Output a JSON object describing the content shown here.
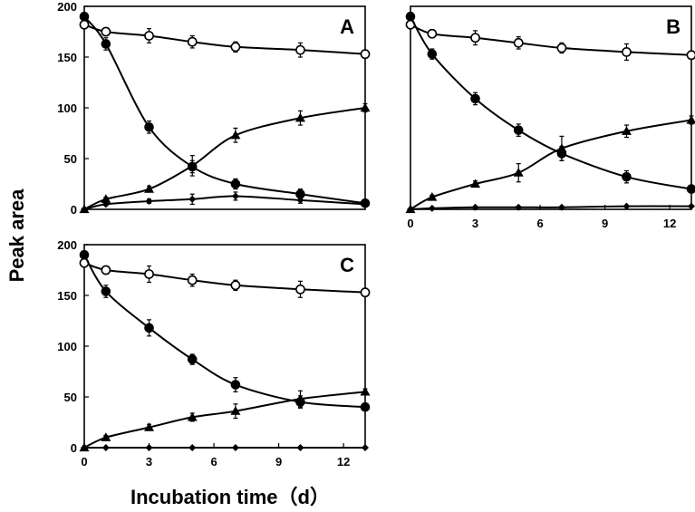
{
  "figure": {
    "ylabel": "Peak area",
    "xlabel": "Incubation time（d）"
  },
  "chart_data": [
    {
      "type": "line",
      "panel": "A",
      "xlim": [
        0,
        13
      ],
      "ylim": [
        0,
        200
      ],
      "yticks": [
        0,
        50,
        100,
        150,
        200
      ],
      "xticks": [],
      "series": [
        {
          "name": "open-circle",
          "marker": "open-circle",
          "x": [
            0,
            1,
            3,
            5,
            7,
            10,
            13
          ],
          "y": [
            182,
            175,
            171,
            165,
            160,
            157,
            153
          ],
          "err": [
            4,
            4,
            7,
            6,
            5,
            7,
            4
          ]
        },
        {
          "name": "filled-circle",
          "marker": "filled-circle",
          "x": [
            0,
            1,
            3,
            5,
            7,
            10,
            13
          ],
          "y": [
            190,
            163,
            81,
            42,
            25,
            15,
            6
          ],
          "err": [
            3,
            6,
            6,
            6,
            5,
            5,
            2
          ]
        },
        {
          "name": "triangle",
          "marker": "triangle",
          "x": [
            0,
            1,
            3,
            5,
            7,
            10,
            13
          ],
          "y": [
            0,
            10,
            20,
            43,
            73,
            90,
            100
          ],
          "err": [
            0,
            2,
            3,
            10,
            7,
            7,
            4
          ]
        },
        {
          "name": "diamond",
          "marker": "diamond",
          "x": [
            0,
            1,
            3,
            5,
            7,
            10,
            13
          ],
          "y": [
            0,
            5,
            8,
            10,
            13,
            9,
            5
          ],
          "err": [
            0,
            1,
            2,
            5,
            4,
            3,
            2
          ]
        }
      ]
    },
    {
      "type": "line",
      "panel": "B",
      "xlim": [
        0,
        13
      ],
      "ylim": [
        0,
        200
      ],
      "yticks": [],
      "xticks": [
        0,
        3,
        6,
        9,
        12
      ],
      "series": [
        {
          "name": "open-circle",
          "marker": "open-circle",
          "x": [
            0,
            1,
            3,
            5,
            7,
            10,
            13
          ],
          "y": [
            182,
            173,
            169,
            164,
            159,
            155,
            152
          ],
          "err": [
            4,
            4,
            7,
            6,
            5,
            8,
            4
          ]
        },
        {
          "name": "filled-circle",
          "marker": "filled-circle",
          "x": [
            0,
            1,
            3,
            5,
            7,
            10,
            13
          ],
          "y": [
            190,
            153,
            109,
            78,
            55,
            32,
            20
          ],
          "err": [
            3,
            5,
            6,
            6,
            7,
            6,
            3
          ]
        },
        {
          "name": "triangle",
          "marker": "triangle",
          "x": [
            0,
            1,
            3,
            5,
            7,
            10,
            13
          ],
          "y": [
            0,
            12,
            25,
            36,
            60,
            77,
            88
          ],
          "err": [
            0,
            2,
            3,
            9,
            12,
            6,
            4
          ]
        },
        {
          "name": "diamond",
          "marker": "diamond",
          "x": [
            0,
            1,
            3,
            5,
            7,
            10,
            13
          ],
          "y": [
            0,
            1,
            2,
            2,
            2,
            3,
            3
          ],
          "err": [
            0,
            0,
            0,
            0,
            0,
            0,
            0
          ]
        }
      ]
    },
    {
      "type": "line",
      "panel": "C",
      "xlim": [
        0,
        13
      ],
      "ylim": [
        0,
        200
      ],
      "yticks": [
        0,
        50,
        100,
        150,
        200
      ],
      "xticks": [
        0,
        3,
        6,
        9,
        12
      ],
      "series": [
        {
          "name": "open-circle",
          "marker": "open-circle",
          "x": [
            0,
            1,
            3,
            5,
            7,
            10,
            13
          ],
          "y": [
            182,
            175,
            171,
            165,
            160,
            156,
            153
          ],
          "err": [
            4,
            4,
            8,
            6,
            5,
            8,
            4
          ]
        },
        {
          "name": "filled-circle",
          "marker": "filled-circle",
          "x": [
            0,
            1,
            3,
            5,
            7,
            10,
            13
          ],
          "y": [
            190,
            154,
            118,
            87,
            62,
            45,
            40
          ],
          "err": [
            3,
            6,
            8,
            5,
            7,
            6,
            3
          ]
        },
        {
          "name": "triangle",
          "marker": "triangle",
          "x": [
            0,
            1,
            3,
            5,
            7,
            10,
            13
          ],
          "y": [
            0,
            10,
            20,
            30,
            36,
            48,
            55
          ],
          "err": [
            0,
            2,
            3,
            4,
            7,
            8,
            3
          ]
        },
        {
          "name": "diamond",
          "marker": "diamond",
          "x": [
            0,
            1,
            3,
            5,
            7,
            10,
            13
          ],
          "y": [
            0,
            0,
            0,
            0,
            0,
            0,
            0
          ],
          "err": [
            0,
            0,
            0,
            0,
            0,
            0,
            0
          ]
        }
      ]
    }
  ]
}
